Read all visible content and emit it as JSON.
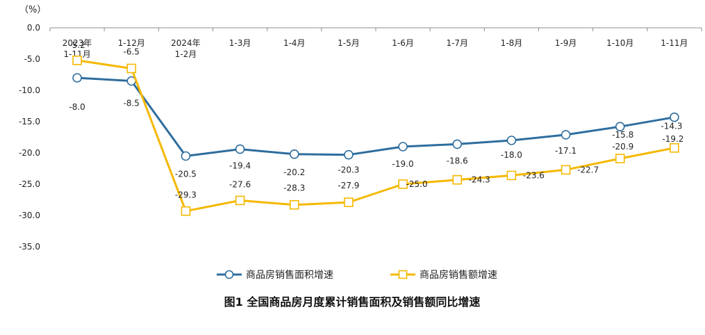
{
  "chart_data": {
    "type": "line",
    "title": "图1  全国商品房月度累计销售面积及销售额同比增速",
    "unit": "（%）",
    "categories": [
      [
        "2023年",
        "1-11月"
      ],
      [
        "1-12月"
      ],
      [
        "2024年",
        "1-2月"
      ],
      [
        "1-3月"
      ],
      [
        "1-4月"
      ],
      [
        "1-5月"
      ],
      [
        "1-6月"
      ],
      [
        "1-7月"
      ],
      [
        "1-8月"
      ],
      [
        "1-9月"
      ],
      [
        "1-10月"
      ],
      [
        "1-11月"
      ]
    ],
    "ylim": [
      -35,
      0
    ],
    "yticks": [
      "0.0",
      "-5.0",
      "-10.0",
      "-15.0",
      "-20.0",
      "-25.0",
      "-30.0",
      "-35.0"
    ],
    "legend_position": "bottom",
    "series": [
      {
        "name": "商品房销售面积增速",
        "color": "#2e6d9e",
        "marker": "circle",
        "values": [
          -8.0,
          -8.5,
          -20.5,
          -19.4,
          -20.2,
          -20.3,
          -19.0,
          -18.6,
          -18.0,
          -17.1,
          -15.8,
          -14.3
        ],
        "labels": [
          "-8.0",
          "-8.5",
          "-20.5",
          "-19.4",
          "-20.2",
          "-20.3",
          "-19.0",
          "-18.6",
          "-18.0",
          "-17.1",
          "-15.8",
          "-14.3"
        ]
      },
      {
        "name": "商品房销售额增速",
        "color": "#f5b800",
        "marker": "square",
        "values": [
          -5.2,
          -6.5,
          -29.3,
          -27.6,
          -28.3,
          -27.9,
          -25.0,
          -24.3,
          -23.6,
          -22.7,
          -20.9,
          -19.2
        ],
        "labels": [
          "-5.2",
          "-6.5",
          "-29.3",
          "-27.6",
          "-28.3",
          "-27.9",
          "-25.0",
          "-24.3",
          "-23.6",
          "-22.7",
          "-20.9",
          "-19.2"
        ]
      }
    ]
  }
}
